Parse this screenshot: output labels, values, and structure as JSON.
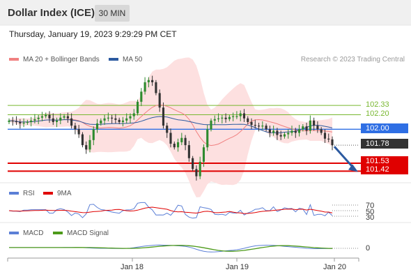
{
  "header": {
    "title": "Dollar Index (ICE)",
    "timeframe": "30 MIN",
    "timestamp": "Thursday, January 19, 2023 9:29:29 PM CET",
    "credit": "Research © 2023 Trading Central"
  },
  "legend": {
    "ma20_bb": "MA 20 + Bollinger Bands",
    "ma50": "MA 50",
    "rsi": "RSI",
    "rsi_ma": "9MA",
    "macd": "MACD",
    "macd_signal": "MACD Signal"
  },
  "colors": {
    "resistance": "#77b72e",
    "pivot": "#2f6fe4",
    "support": "#e00000",
    "current_price": "#333333",
    "bollinger_fill": "#fde0e0",
    "ma20": "#f08080",
    "ma50": "#2c5aa0"
  },
  "levels": {
    "r2": "102.33",
    "r1": "102.20",
    "pivot": "102.00",
    "last": "101.78",
    "s1": "101.53",
    "s2": "101.42"
  },
  "xaxis": {
    "ticks": [
      "Jan 18",
      "Jan 19",
      "Jan 20"
    ]
  },
  "indicator_ticks": {
    "rsi": [
      "70",
      "50",
      "30"
    ],
    "macd": [
      "0"
    ]
  },
  "chart_data": {
    "type": "candlestick",
    "price_range": [
      101.26,
      102.9
    ],
    "levels": {
      "resistance": [
        102.33,
        102.2
      ],
      "pivot": 102.0,
      "last": 101.78,
      "support": [
        101.53,
        101.42
      ]
    },
    "close": [
      102.12,
      102.11,
      102.1,
      102.08,
      102.09,
      102.1,
      102.12,
      102.14,
      102.16,
      102.18,
      102.2,
      102.15,
      102.1,
      102.12,
      102.16,
      102.18,
      102.15,
      102.05,
      102.0,
      101.93,
      101.78,
      101.72,
      101.85,
      102.0,
      102.08,
      102.12,
      102.15,
      102.16,
      102.15,
      102.13,
      102.1,
      102.12,
      102.15,
      102.18,
      102.22,
      102.38,
      102.52,
      102.65,
      102.68,
      102.65,
      102.5,
      102.3,
      102.05,
      101.95,
      101.8,
      101.75,
      101.82,
      101.88,
      101.78,
      101.6,
      101.45,
      101.35,
      101.55,
      101.75,
      102.0,
      102.12,
      102.14,
      102.15,
      102.16,
      102.14,
      102.17,
      102.18,
      102.18,
      102.22,
      102.15,
      102.1,
      102.06,
      102.05,
      102.04,
      102.05,
      102.0,
      101.95,
      101.98,
      101.92,
      101.9,
      101.93,
      101.95,
      101.98,
      101.95,
      102.0,
      102.04,
      101.98,
      102.12,
      102.05,
      102.0,
      101.95,
      101.87,
      101.86,
      101.78
    ]
  }
}
